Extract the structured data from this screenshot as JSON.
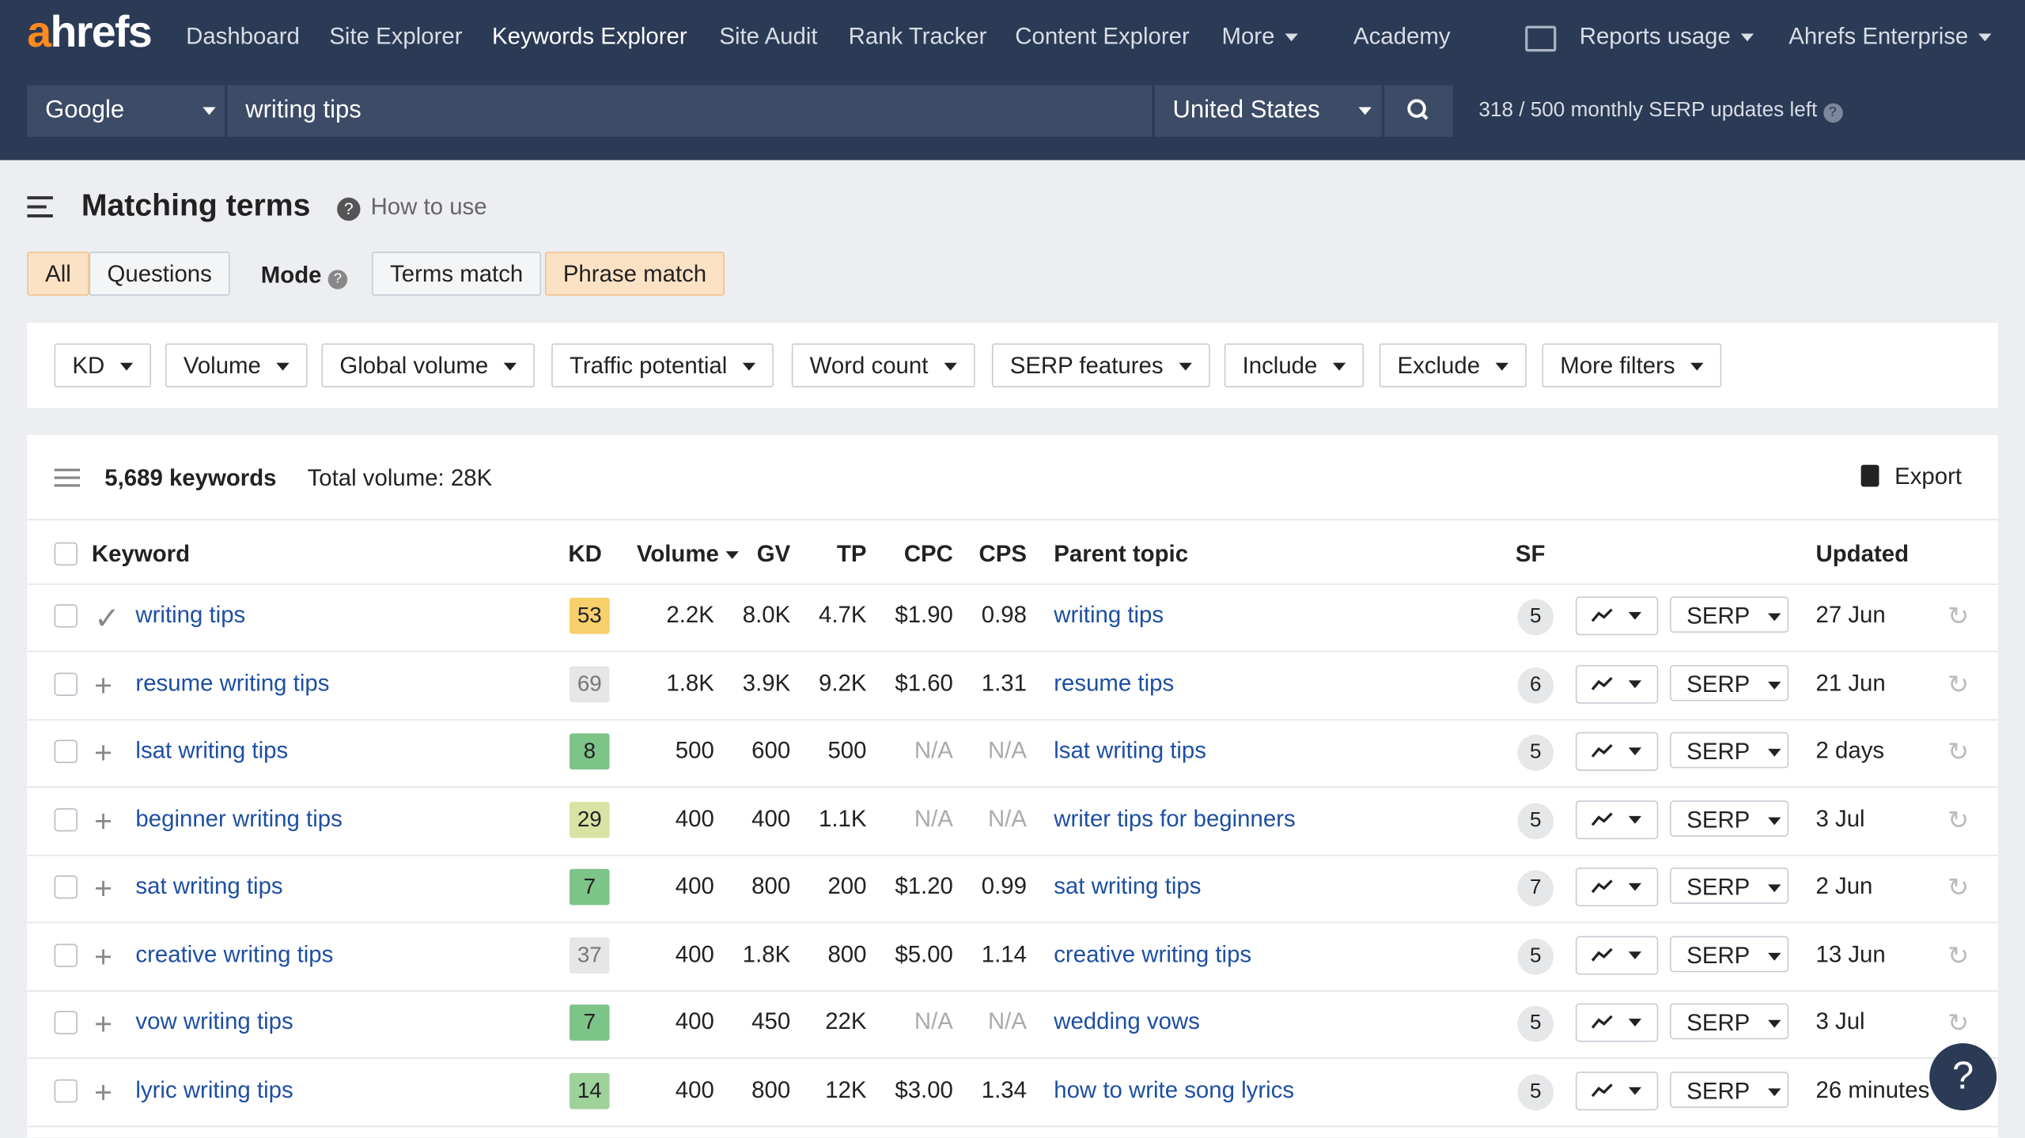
{
  "nav": {
    "logo": "ahrefs",
    "items": [
      "Dashboard",
      "Site Explorer",
      "Keywords Explorer",
      "Site Audit",
      "Rank Tracker",
      "Content Explorer",
      "More"
    ],
    "academy": "Academy",
    "reports": "Reports usage",
    "account": "Ahrefs Enterprise"
  },
  "search": {
    "engine": "Google",
    "query": "writing tips",
    "country": "United States",
    "updates": "318 / 500 monthly SERP updates left"
  },
  "header": {
    "title": "Matching terms",
    "how_to": "How to use"
  },
  "tabs": [
    "All",
    "Questions"
  ],
  "mode_label": "Mode",
  "modes": [
    "Terms match",
    "Phrase match"
  ],
  "filters": [
    "KD",
    "Volume",
    "Global volume",
    "Traffic potential",
    "Word count",
    "SERP features",
    "Include",
    "Exclude",
    "More filters"
  ],
  "summary": {
    "keywords": "5,689 keywords",
    "total": "Total volume: 28K",
    "export": "Export"
  },
  "table": {
    "columns": [
      "Keyword",
      "KD",
      "Volume",
      "GV",
      "TP",
      "CPC",
      "CPS",
      "Parent topic",
      "SF",
      "Updated"
    ],
    "serp_button": "SERP",
    "rows": [
      [
        "writing tips",
        53,
        "2.2K",
        "8.0K",
        "4.7K",
        "$1.90",
        "0.98",
        "writing tips",
        5,
        "27 Jun"
      ],
      [
        "resume writing tips",
        69,
        "1.8K",
        "3.9K",
        "9.2K",
        "$1.60",
        "1.31",
        "resume tips",
        6,
        "21 Jun"
      ],
      [
        "lsat writing tips",
        8,
        "500",
        "600",
        "500",
        "N/A",
        "N/A",
        "lsat writing tips",
        5,
        "2 days"
      ],
      [
        "beginner writing tips",
        29,
        "400",
        "400",
        "1.1K",
        "N/A",
        "N/A",
        "writer tips for beginners",
        5,
        "3 Jul"
      ],
      [
        "sat writing tips",
        7,
        "400",
        "800",
        "200",
        "$1.20",
        "0.99",
        "sat writing tips",
        7,
        "2 Jun"
      ],
      [
        "creative writing tips",
        37,
        "400",
        "1.8K",
        "800",
        "$5.00",
        "1.14",
        "creative writing tips",
        5,
        "13 Jun"
      ],
      [
        "vow writing tips",
        7,
        "400",
        "450",
        "22K",
        "N/A",
        "N/A",
        "wedding vows",
        5,
        "3 Jul"
      ],
      [
        "lyric writing tips",
        14,
        "400",
        "800",
        "12K",
        "$3.00",
        "1.34",
        "how to write song lyrics",
        5,
        "26 minutes"
      ]
    ]
  },
  "help": "?"
}
